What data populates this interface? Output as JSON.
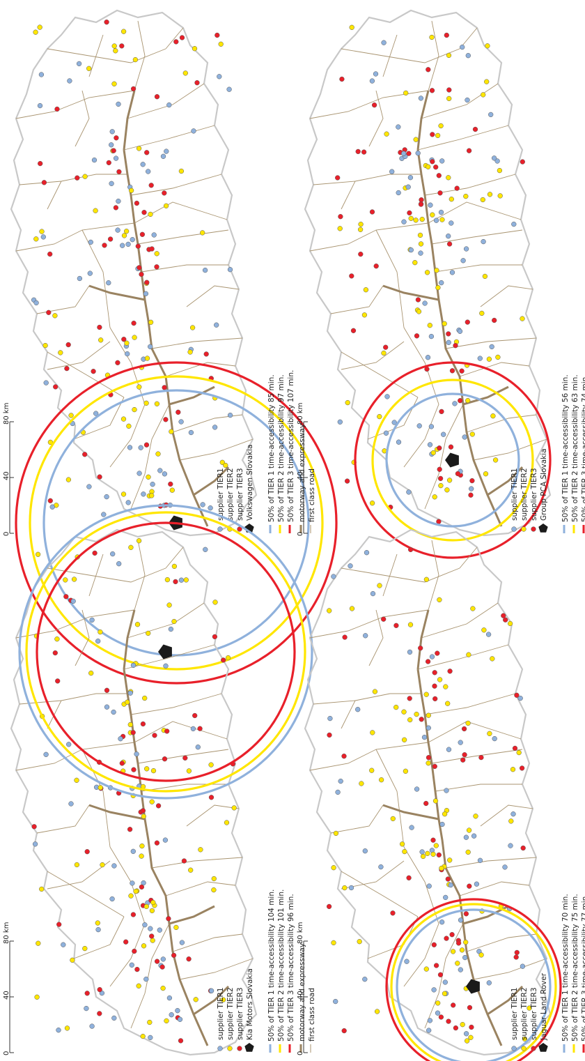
{
  "scale_bar": {
    "ticks": [
      "0",
      "40",
      "80 km"
    ]
  },
  "colors": {
    "tier1": "#8fb1dc",
    "tier2": "#ffe600",
    "tier3": "#e8202a",
    "motorway": "#9a8361",
    "first_class": "#a8936f",
    "border": "#c8c8c8",
    "plant": "#1a1a1a"
  },
  "panels": [
    {
      "id": "volkswagen",
      "plant_label": "Volkswagen Slovakia",
      "legend_suppliers": [
        "supplier TIER1",
        "supplier TIER2",
        "supplier TIER3"
      ],
      "legend_rings": [
        "50% of TIER 1 time-accessibility 85 min.",
        "50% of TIER 2 time-accessibility 97 min.",
        "50% of TIER 3 time-accessibility 107 min."
      ],
      "legend_roads": [
        "motorway and expressway",
        "first class road"
      ]
    },
    {
      "id": "pca",
      "plant_label": "Group PCA Slovakia",
      "legend_suppliers": [
        "supplier TIER1",
        "supplier TIER2",
        "supplier TIER3"
      ],
      "legend_rings": [
        "50% of TIER 1 time-accessibility 56 min.",
        "50% of TIER 2 time-accessibility 63 min.",
        "50% of TIER 3 time-accessibility 74 min."
      ],
      "legend_roads": [
        "motorway and expressway",
        "first class road"
      ]
    },
    {
      "id": "kia",
      "plant_label": "Kia Motors Slovakia",
      "legend_suppliers": [
        "supplier TIER1",
        "supplier TIER2",
        "supplier TIER3"
      ],
      "legend_rings": [
        "50% of TIER 1 time-accessibility 104 min.",
        "50% of TIER 2 time-accessibility 101 min.",
        "50% of TIER 3 time-accessibility 96 min."
      ],
      "legend_roads": [
        "motorway and expressway",
        "first class road"
      ]
    },
    {
      "id": "jlr",
      "plant_label": "Jaguar Land Rover",
      "legend_suppliers": [
        "supplier TIER1",
        "supplier TIER2",
        "supplier TIER3"
      ],
      "legend_rings": [
        "50% of TIER 1 time-accessibility 70 min.",
        "50% of TIER 2 time-accessibility 75 min.",
        "50% of TIER 3 time-accessibility 77 min."
      ],
      "legend_roads": [
        "motorway and expressway",
        "first class road"
      ]
    }
  ]
}
